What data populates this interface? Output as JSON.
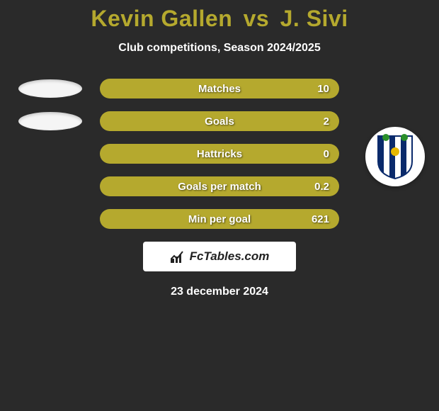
{
  "title_color": "#b5a92e",
  "bar_color": "#b5a92e",
  "background_color": "#2a2a2a",
  "text_color": "#ffffff",
  "header": {
    "player_a": "Kevin Gallen",
    "vs": "vs",
    "player_b": "J. Sivi",
    "subtitle": "Club competitions, Season 2024/2025"
  },
  "stats": [
    {
      "label": "Matches",
      "right_value": "10"
    },
    {
      "label": "Goals",
      "right_value": "2"
    },
    {
      "label": "Hattricks",
      "right_value": "0"
    },
    {
      "label": "Goals per match",
      "right_value": "0.2"
    },
    {
      "label": "Min per goal",
      "right_value": "621"
    }
  ],
  "crest_a_ellipse_shown_rows": [
    0,
    1
  ],
  "crest_b": {
    "stripes": [
      "#0a2a6b",
      "#ffffff"
    ],
    "accent_green": "#2a8f2a",
    "accent_yellow": "#e6b800"
  },
  "brand": {
    "name": "FcTables.com",
    "icon_color": "#b5a92e"
  },
  "date": "23 december 2024"
}
